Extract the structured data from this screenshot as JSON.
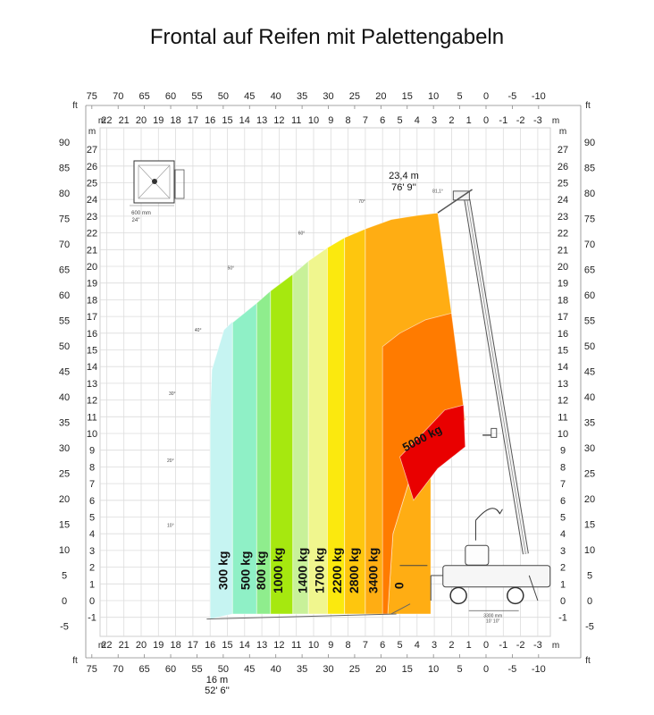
{
  "chart_data": {
    "type": "area",
    "title": "Frontal auf Reifen mit Palettengabeln",
    "x_unit_top": "m",
    "x_unit_ft": "ft",
    "y_unit_m": "m",
    "y_unit_ft": "ft",
    "x_ticks_m": [
      "22",
      "21",
      "20",
      "19",
      "18",
      "17",
      "16",
      "15",
      "14",
      "13",
      "12",
      "11",
      "10",
      "9",
      "8",
      "7",
      "6",
      "5",
      "4",
      "3",
      "2",
      "1",
      "0",
      "-1",
      "-2",
      "-3"
    ],
    "x_ticks_ft": [
      "75",
      "70",
      "65",
      "60",
      "55",
      "50",
      "45",
      "40",
      "35",
      "30",
      "25",
      "20",
      "15",
      "10",
      "5",
      "0",
      "-5",
      "-10"
    ],
    "y_ticks_m": [
      "27",
      "26",
      "25",
      "24",
      "23",
      "22",
      "21",
      "20",
      "19",
      "18",
      "17",
      "16",
      "15",
      "14",
      "13",
      "12",
      "11",
      "10",
      "9",
      "8",
      "7",
      "6",
      "5",
      "4",
      "3",
      "2",
      "1",
      "0",
      "-1"
    ],
    "y_ticks_ft": [
      "90",
      "85",
      "80",
      "75",
      "70",
      "65",
      "60",
      "55",
      "50",
      "45",
      "40",
      "35",
      "30",
      "25",
      "20",
      "15",
      "10",
      "5",
      "0",
      "-5"
    ],
    "xlim_m": [
      -3.5,
      23
    ],
    "ylim_m": [
      -1.5,
      27.5
    ],
    "grid": true,
    "angles": [
      "81,1°",
      "70°",
      "60°",
      "50°",
      "40°",
      "30°",
      "20°",
      "10°"
    ],
    "max_height": {
      "m": "23,4 m",
      "ft": "76' 9''"
    },
    "max_reach": {
      "m": "16 m",
      "ft": "52' 6''"
    },
    "inset": {
      "label_mm": "600 mm",
      "label_in": "24''"
    },
    "machine_dim": {
      "mm": "3300 mm",
      "ft": "10' 10''"
    },
    "series": [
      {
        "name": "300 kg",
        "reach_m": 16,
        "color": "#c6f4f2"
      },
      {
        "name": "500 kg",
        "reach_m": 15,
        "color": "#8ff0c6"
      },
      {
        "name": "800 kg",
        "reach_m": 13.2,
        "color": "#8fed8d"
      },
      {
        "name": "1000 kg",
        "reach_m": 12.5,
        "color": "#a6e80f"
      },
      {
        "name": "1400 kg",
        "reach_m": 11.2,
        "color": "#c8f199"
      },
      {
        "name": "1700 kg",
        "reach_m": 10.3,
        "color": "#f0f68e"
      },
      {
        "name": "2200 kg",
        "reach_m": 9.2,
        "color": "#fbe90e"
      },
      {
        "name": "2800 kg",
        "reach_m": 8.2,
        "color": "#fec60e"
      },
      {
        "name": "3400 kg",
        "reach_m": 7.0,
        "color": "#ffad13"
      },
      {
        "name": "5000 kg",
        "reach_m": 4.2,
        "color": "#ff7b00"
      },
      {
        "name": "0",
        "reach_m": 3.2,
        "color": "#e90000"
      }
    ],
    "zone_5000": {
      "name": "5000 kg",
      "color": "#e90000"
    }
  }
}
